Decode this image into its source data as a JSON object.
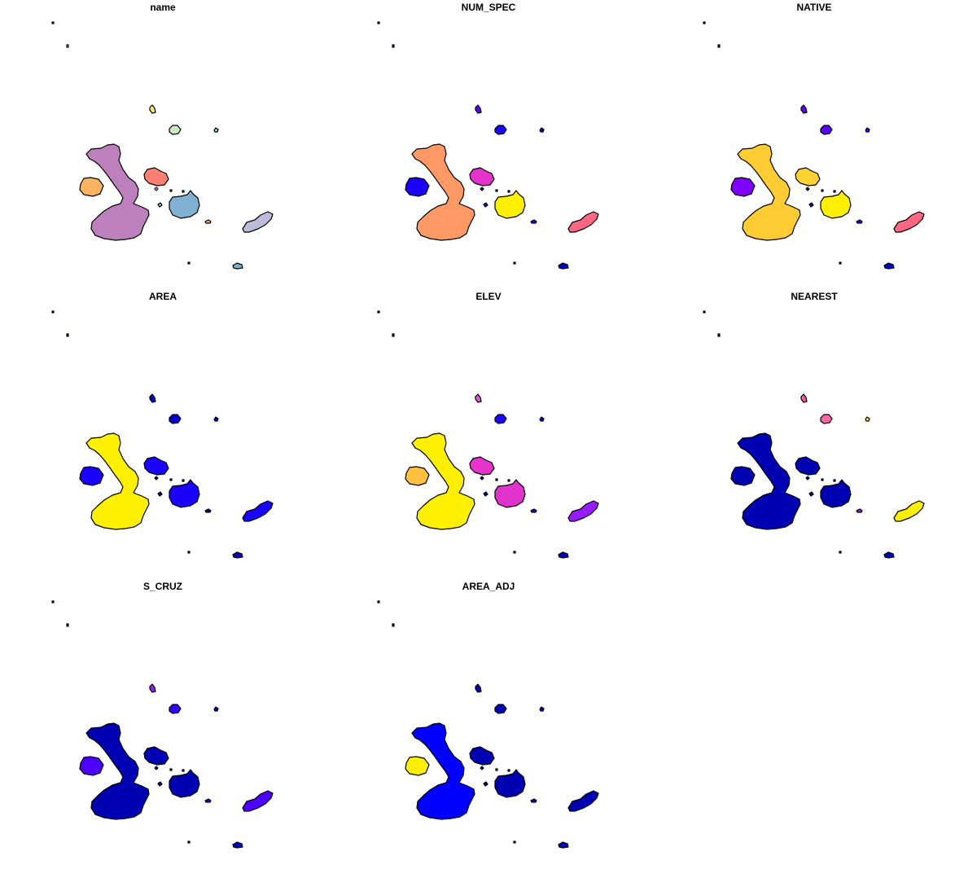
{
  "panels": [
    {
      "title": "name",
      "fills": [
        "#BE80BD",
        "#FDB462",
        "#FB8072",
        "#80B1D3",
        "#BEBADA",
        "#FFED6F",
        "#CCEBC5",
        "#8DD3C7",
        "#FDB462",
        "#80B1D3",
        "#8DD3C7",
        "#FFFFB3",
        "#BC80BD",
        "#CCEBC5",
        "#FB8072",
        "#FFFFB3",
        "#B3DE69"
      ]
    },
    {
      "title": "NUM_SPEC",
      "fills": [
        "#FF9966",
        "#1A00FF",
        "#E633CC",
        "#FFF000",
        "#FF6680",
        "#5A00FF",
        "#1A00FF",
        "#0000CC",
        "#1A00FF",
        "#0000CC",
        "#0000CC",
        "#0000CC",
        "#0000CC",
        "#1A00FF",
        "#0000CC",
        "#0000CC",
        "#1A00FF"
      ]
    },
    {
      "title": "NATIVE",
      "fills": [
        "#FFCC33",
        "#8000FF",
        "#FFD133",
        "#FFF000",
        "#FF6680",
        "#6600FF",
        "#5A00FF",
        "#3300FF",
        "#2200FF",
        "#0000CC",
        "#0000CC",
        "#0000CC",
        "#0000CC",
        "#3300FF",
        "#0000CC",
        "#0000CC",
        "#3300FF"
      ]
    },
    {
      "title": "AREA",
      "fills": [
        "#FFF000",
        "#1A00FF",
        "#1A00FF",
        "#1A00FF",
        "#1A00FF",
        "#0000CC",
        "#0000CC",
        "#0000CC",
        "#0000CC",
        "#0000CC",
        "#0000CC",
        "#0000CC",
        "#0000CC",
        "#0000CC",
        "#0000CC",
        "#0000CC",
        "#0000CC"
      ]
    },
    {
      "title": "ELEV",
      "fills": [
        "#FFF000",
        "#FFC040",
        "#E633CC",
        "#E033CC",
        "#9A1AFF",
        "#E055D0",
        "#1A00FF",
        "#0000CC",
        "#1A00FF",
        "#0000CC",
        "#0000CC",
        "#0000CC",
        "#0000CC",
        "#3300FF",
        "#0000CC",
        "#0000CC",
        "#1A00FF"
      ]
    },
    {
      "title": "NEAREST",
      "fills": [
        "#0000B3",
        "#0000B3",
        "#0000B3",
        "#0000B3",
        "#FFF000",
        "#FF55AA",
        "#FF66AA",
        "#FFF066",
        "#9A1AFF",
        "#0000CC",
        "#0000CC",
        "#0000CC",
        "#0000CC",
        "#3300FF",
        "#0000CC",
        "#0000CC",
        "#1A00FF"
      ]
    },
    {
      "title": "S_CRUZ",
      "fills": [
        "#0000B3",
        "#4D00FF",
        "#0000B3",
        "#0000B3",
        "#4D00FF",
        "#9A1AFF",
        "#3300FF",
        "#0000CC",
        "#2200FF",
        "#0000CC",
        "#0000CC",
        "#0000CC",
        "#0000CC",
        "#3300FF",
        "#0000CC",
        "#0000CC",
        "#3300FF"
      ]
    },
    {
      "title": "AREA_ADJ",
      "fills": [
        "#0000FF",
        "#FFF000",
        "#0000B3",
        "#0000B3",
        "#0000B3",
        "#0000CC",
        "#0000B3",
        "#0000CC",
        "#0000CC",
        "#0000CC",
        "#0000CC",
        "#0000CC",
        "#0000CC",
        "#0000B3",
        "#0000CC",
        "#0000CC",
        "#0000CC"
      ]
    }
  ]
}
